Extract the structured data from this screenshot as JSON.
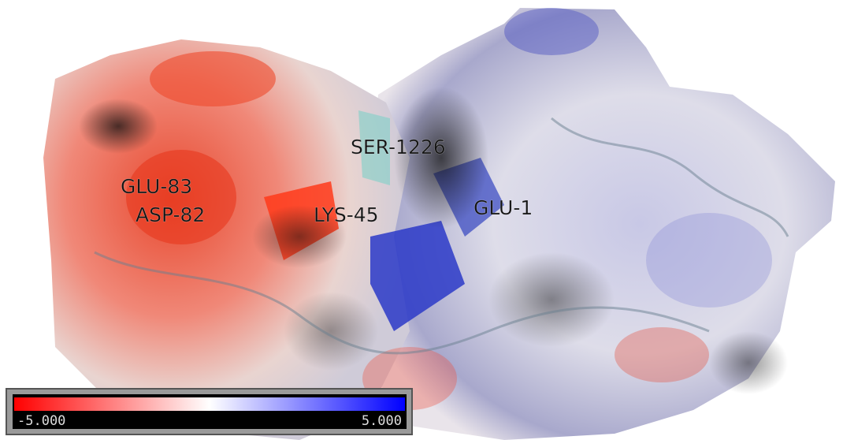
{
  "labels": [
    "SER-1226",
    "GLU-83",
    "ASP-82",
    "LYS-45",
    "GLU-1"
  ],
  "colorbar": {
    "min_label": "-5.000",
    "max_label": "5.000"
  }
}
